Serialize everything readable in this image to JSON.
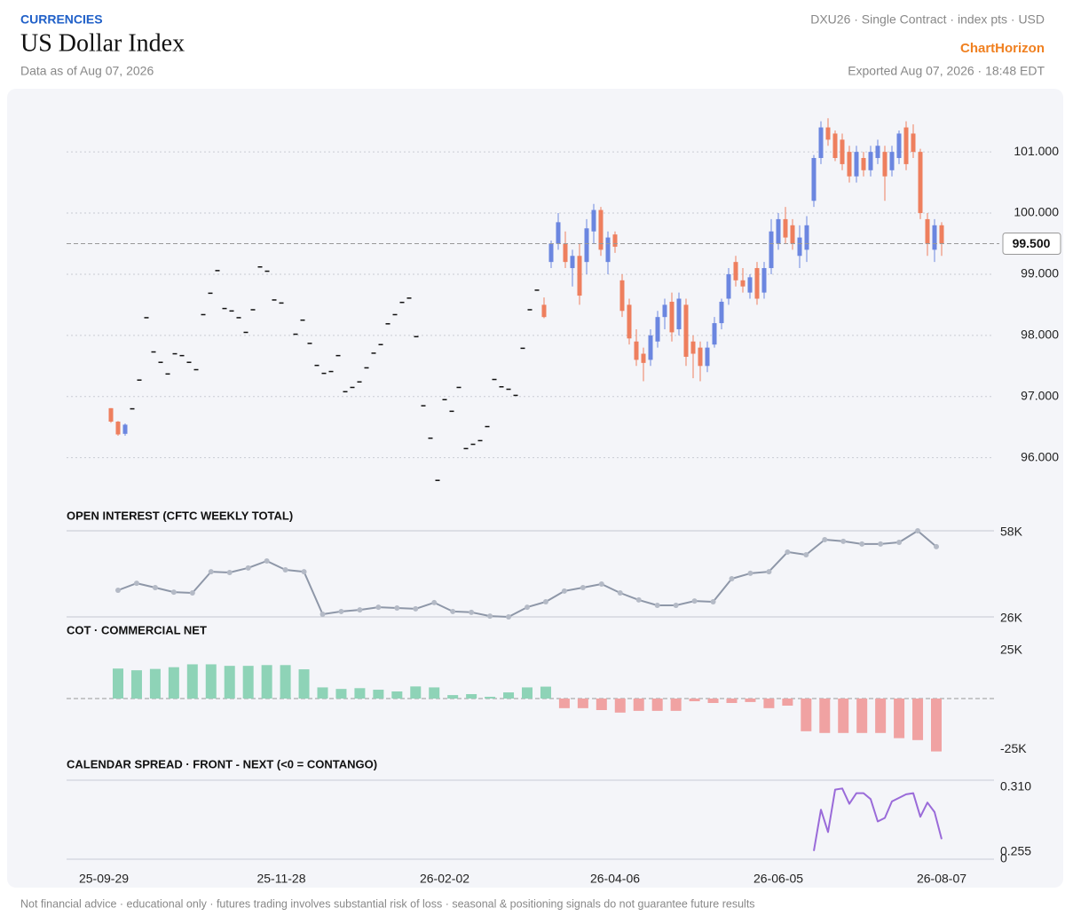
{
  "header": {
    "section": "CURRENCIES",
    "title": "US Dollar Index",
    "subtitle": "Data as of Aug 07, 2026",
    "contract": "DXU26 · Single Contract · index pts · USD",
    "brand": "ChartHorizon",
    "exported": "Exported Aug 07, 2026 · 18:48 EDT"
  },
  "footer": "Not financial advice · educational only · futures trading involves substantial risk of loss · seasonal & positioning signals do not guarantee future results",
  "chart_data": [
    {
      "type": "candlestick",
      "categories": [
        "25-09-29",
        null,
        null,
        null,
        null,
        null,
        null,
        null,
        null,
        null,
        null,
        null,
        null,
        null,
        null,
        null,
        null,
        null,
        null,
        null,
        null,
        null,
        null,
        null,
        null,
        "25-11-28",
        null,
        null,
        null,
        null,
        null,
        null,
        null,
        null,
        null,
        null,
        null,
        null,
        null,
        null,
        null,
        null,
        null,
        null,
        null,
        null,
        null,
        null,
        "26-02-02",
        null,
        null,
        null,
        null,
        null,
        null,
        null,
        null,
        null,
        null,
        null,
        null,
        null,
        null,
        null,
        null,
        null,
        null,
        null,
        null,
        null,
        null,
        null,
        "26-04-06",
        null,
        null,
        null,
        null,
        null,
        null,
        null,
        null,
        null,
        null,
        null,
        null,
        null,
        null,
        null,
        null,
        null,
        null,
        null,
        null,
        null,
        null,
        "26-06-05",
        null,
        null,
        null,
        null,
        null,
        null,
        null,
        null,
        null,
        null,
        null,
        null,
        null,
        null,
        null,
        null,
        null,
        null,
        null,
        null,
        null,
        null,
        "26-08-07"
      ],
      "open": [
        null,
        96.81,
        96.59,
        96.39,
        96.81,
        97.28,
        98.3,
        97.74,
        97.57,
        97.38,
        97.71,
        97.68,
        97.57,
        97.45,
        98.35,
        98.7,
        99.07,
        98.45,
        98.41,
        98.3,
        98.06,
        98.43,
        99.13,
        99.06,
        98.59,
        98.54,
        null,
        98.03,
        98.26,
        97.88,
        97.52,
        97.39,
        97.42,
        97.68,
        97.09,
        97.16,
        97.25,
        97.48,
        97.72,
        97.86,
        98.2,
        98.35,
        98.55,
        98.62,
        97.99,
        96.86,
        96.33,
        95.64,
        96.96,
        96.77,
        97.16,
        96.16,
        96.23,
        96.29,
        96.52,
        97.29,
        97.17,
        97.13,
        97.03,
        97.8,
        98.43,
        98.75,
        98.5,
        99.2,
        99.5,
        99.5,
        99.1,
        99.3,
        99.2,
        99.7,
        100.05,
        99.2,
        99.65,
        98.9,
        98.5,
        97.9,
        97.7,
        97.6,
        97.9,
        98.3,
        98.55,
        98.1,
        98.5,
        97.9,
        97.8,
        97.5,
        97.85,
        98.2,
        98.6,
        99.2,
        98.9,
        98.7,
        99.1,
        98.7,
        99.1,
        99.5,
        99.9,
        99.8,
        99.3,
        99.4,
        100.2,
        100.9,
        101.4,
        101.3,
        101.2,
        101.0,
        100.6,
        100.9,
        100.7,
        100.9,
        101.0,
        100.7,
        100.9,
        101.4,
        101.3,
        101.0,
        99.9,
        99.4,
        99.8
      ],
      "high": [
        null,
        96.81,
        96.6,
        96.56,
        96.81,
        97.28,
        98.3,
        97.74,
        97.57,
        97.38,
        97.71,
        97.68,
        97.57,
        97.45,
        98.35,
        98.7,
        99.07,
        98.45,
        98.41,
        98.3,
        98.06,
        98.43,
        99.13,
        99.06,
        98.59,
        98.54,
        null,
        98.03,
        98.26,
        97.88,
        97.52,
        97.39,
        97.42,
        97.68,
        97.09,
        97.16,
        97.25,
        97.48,
        97.72,
        97.86,
        98.2,
        98.35,
        98.55,
        98.62,
        97.99,
        96.86,
        96.33,
        95.64,
        96.96,
        96.77,
        97.16,
        96.16,
        96.23,
        96.29,
        96.52,
        97.29,
        97.17,
        97.13,
        97.03,
        97.8,
        98.43,
        98.75,
        98.62,
        99.55,
        100.0,
        99.7,
        99.4,
        99.5,
        99.9,
        100.15,
        100.1,
        99.7,
        99.7,
        99.0,
        98.6,
        98.1,
        97.8,
        98.1,
        98.4,
        98.6,
        98.7,
        98.7,
        98.6,
        98.0,
        97.9,
        97.9,
        98.3,
        98.6,
        99.1,
        99.3,
        99.1,
        99.0,
        99.2,
        99.2,
        99.9,
        100.0,
        100.1,
        99.9,
        99.8,
        99.95,
        100.95,
        101.5,
        101.55,
        101.35,
        101.3,
        101.1,
        101.1,
        101.0,
        101.1,
        101.2,
        101.1,
        101.1,
        101.35,
        101.5,
        101.45,
        101.05,
        100.0,
        99.9,
        99.85
      ],
      "low": [
        null,
        96.57,
        96.36,
        96.36,
        96.81,
        97.28,
        98.3,
        97.74,
        97.57,
        97.38,
        97.71,
        97.68,
        97.57,
        97.45,
        98.35,
        98.7,
        99.07,
        98.45,
        98.41,
        98.3,
        98.06,
        98.43,
        99.13,
        99.06,
        98.59,
        98.54,
        null,
        98.03,
        98.26,
        97.88,
        97.52,
        97.39,
        97.42,
        97.68,
        97.09,
        97.16,
        97.25,
        97.48,
        97.72,
        97.86,
        98.2,
        98.35,
        98.55,
        98.62,
        97.99,
        96.86,
        96.33,
        95.64,
        96.96,
        96.77,
        97.16,
        96.16,
        96.23,
        96.29,
        96.52,
        97.29,
        97.17,
        97.13,
        97.03,
        97.8,
        98.43,
        98.75,
        98.28,
        99.1,
        99.4,
        99.1,
        98.8,
        98.5,
        99.0,
        99.5,
        99.3,
        99.0,
        99.35,
        98.3,
        97.85,
        97.5,
        97.25,
        97.5,
        97.8,
        98.1,
        97.9,
        98.0,
        97.5,
        97.3,
        97.25,
        97.4,
        97.8,
        98.1,
        98.5,
        98.8,
        98.7,
        98.6,
        98.5,
        98.6,
        99.0,
        99.4,
        99.5,
        99.4,
        99.1,
        99.2,
        100.1,
        100.8,
        101.1,
        100.85,
        100.7,
        100.5,
        100.5,
        100.6,
        100.6,
        100.8,
        100.2,
        100.6,
        100.8,
        100.7,
        100.9,
        99.9,
        99.3,
        99.2,
        99.3
      ],
      "close": [
        null,
        96.59,
        96.38,
        96.54,
        96.81,
        97.28,
        98.3,
        97.74,
        97.57,
        97.38,
        97.71,
        97.68,
        97.57,
        97.45,
        98.35,
        98.7,
        99.07,
        98.45,
        98.41,
        98.3,
        98.06,
        98.43,
        99.13,
        99.06,
        98.59,
        98.54,
        null,
        98.03,
        98.26,
        97.88,
        97.52,
        97.39,
        97.42,
        97.68,
        97.09,
        97.16,
        97.25,
        97.48,
        97.72,
        97.86,
        98.2,
        98.35,
        98.55,
        98.62,
        97.99,
        96.86,
        96.33,
        95.64,
        96.96,
        96.77,
        97.16,
        96.16,
        96.23,
        96.29,
        96.52,
        97.29,
        97.17,
        97.13,
        97.03,
        97.8,
        98.43,
        98.75,
        98.3,
        99.5,
        99.85,
        99.2,
        99.3,
        98.65,
        99.75,
        100.05,
        99.4,
        99.6,
        99.45,
        98.4,
        97.95,
        97.6,
        97.55,
        98.0,
        98.3,
        98.5,
        98.05,
        98.6,
        97.65,
        97.7,
        97.5,
        97.8,
        98.2,
        98.55,
        99.0,
        98.9,
        98.8,
        98.95,
        98.6,
        99.1,
        99.7,
        99.9,
        99.6,
        99.5,
        99.6,
        99.8,
        100.9,
        101.4,
        101.2,
        100.9,
        100.8,
        100.6,
        101.0,
        100.7,
        101.0,
        101.1,
        100.6,
        101.0,
        101.3,
        100.8,
        101.0,
        100.0,
        99.5,
        99.8,
        99.5
      ],
      "up_color": "#6b86e0",
      "down_color": "#ee7f5e",
      "flat_color": "#111111",
      "ylim": [
        95.4,
        101.8
      ],
      "yticks": [
        {
          "value": 96,
          "label": "96.000"
        },
        {
          "value": 97,
          "label": "97.000"
        },
        {
          "value": 98,
          "label": "98.000"
        },
        {
          "value": 99,
          "label": "99.000"
        },
        {
          "value": 100,
          "label": "100.000"
        },
        {
          "value": 101,
          "label": "101.000"
        }
      ],
      "grid": true,
      "last_price": {
        "value": 99.5,
        "label": "99.500"
      }
    },
    {
      "type": "line",
      "title": "OPEN INTEREST (CFTC WEEKLY TOTAL)",
      "values": [
        35900,
        38500,
        36900,
        35200,
        34900,
        42800,
        42500,
        44200,
        46800,
        43500,
        42800,
        27000,
        28000,
        28600,
        29600,
        29300,
        29000,
        31300,
        28000,
        27700,
        26300,
        26000,
        29600,
        31600,
        35600,
        36900,
        38200,
        34900,
        32300,
        30300,
        30300,
        31900,
        31600,
        40200,
        42200,
        42800,
        50100,
        49100,
        54700,
        54100,
        53100,
        53100,
        53700,
        58000,
        52100
      ],
      "color": "#8e97a8",
      "markers": true,
      "ylim": [
        26000,
        58000
      ],
      "yticks": [
        {
          "value": 26000,
          "label": "26K"
        },
        {
          "value": 58000,
          "label": "58K"
        }
      ],
      "grid": true
    },
    {
      "type": "bar",
      "title": "COT · COMMERCIAL NET",
      "values": [
        15600,
        14700,
        15400,
        16300,
        17800,
        17800,
        17000,
        17000,
        17400,
        17400,
        15200,
        5800,
        5000,
        5400,
        4600,
        3700,
        6300,
        5800,
        1800,
        2300,
        900,
        3200,
        5800,
        6200,
        -5000,
        -5000,
        -6000,
        -7300,
        -6400,
        -6400,
        -6400,
        -1400,
        -2300,
        -2300,
        -1800,
        -5000,
        -3700,
        -17000,
        -17900,
        -17900,
        -17900,
        -17900,
        -20600,
        -21600,
        -27500
      ],
      "positive_color": "#8ed3b7",
      "negative_color": "#f0a2a2",
      "ylim": [
        -30000,
        30000
      ],
      "yticks": [
        {
          "value": -25000,
          "label": "-25K"
        },
        {
          "value": 25000,
          "label": "25K"
        }
      ],
      "grid": false
    },
    {
      "type": "line",
      "title": "CALENDAR SPREAD · FRONT - NEXT (<0 = CONTANGO)",
      "values": [
        null,
        null,
        null,
        null,
        null,
        null,
        null,
        null,
        null,
        null,
        null,
        null,
        null,
        null,
        null,
        null,
        null,
        null,
        null,
        null,
        null,
        null,
        null,
        null,
        null,
        null,
        null,
        null,
        null,
        null,
        null,
        null,
        null,
        null,
        null,
        null,
        null,
        null,
        null,
        null,
        null,
        null,
        null,
        null,
        null,
        null,
        null,
        null,
        null,
        null,
        null,
        null,
        null,
        null,
        null,
        null,
        null,
        null,
        null,
        null,
        null,
        null,
        null,
        null,
        null,
        null,
        null,
        null,
        null,
        null,
        null,
        null,
        null,
        null,
        null,
        null,
        null,
        null,
        null,
        null,
        null,
        null,
        null,
        null,
        null,
        null,
        null,
        null,
        null,
        null,
        null,
        null,
        null,
        null,
        null,
        null,
        null,
        null,
        null,
        null,
        0.256,
        0.291,
        0.272,
        0.308,
        0.309,
        0.296,
        0.305,
        0.305,
        0.3,
        0.281,
        0.284,
        0.298,
        0.301,
        0.304,
        0.305,
        0.285,
        0.297,
        0.289,
        0.266
      ],
      "color": "#9a6bd9",
      "markers": false,
      "ylim": [
        0.249,
        0.316
      ],
      "yticks": [
        {
          "value": 0.255,
          "label": "0.255"
        },
        {
          "value": 0.31,
          "label": "0.310"
        }
      ],
      "grid": false,
      "annotations": [
        "0"
      ]
    }
  ]
}
